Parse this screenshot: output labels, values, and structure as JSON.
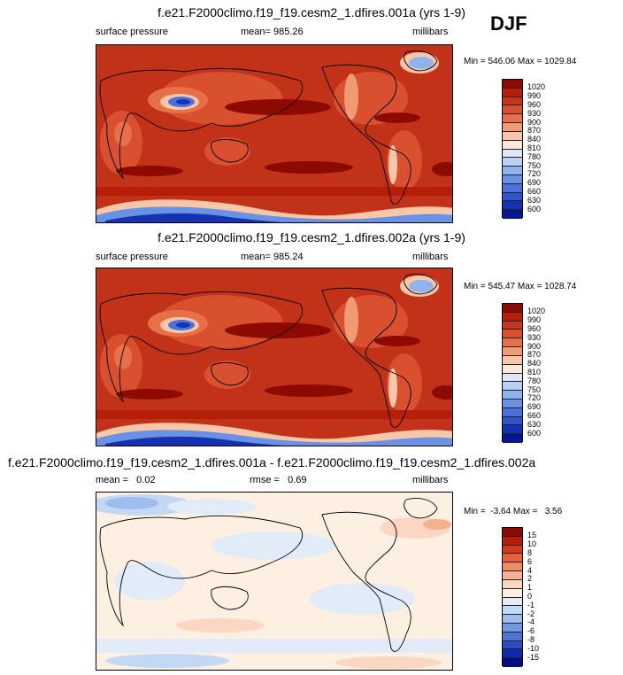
{
  "season_label": "DJF",
  "chart_data": [
    {
      "type": "heatmap",
      "title": "f.e21.F2000climo.f19_f19.cesm2_1.dfires.001a (yrs 1-9)",
      "left_label": "surface pressure",
      "center_label": "mean= 985.26",
      "right_label": "millibars",
      "minmax_label": "Min = 546.06 Max = 1029.84",
      "mean": 985.26,
      "min": 546.06,
      "max": 1029.84,
      "colorbar": {
        "labels": [
          "1020",
          "990",
          "960",
          "930",
          "900",
          "870",
          "840",
          "810",
          "780",
          "750",
          "720",
          "690",
          "660",
          "630",
          "600"
        ],
        "colors": [
          "#8c0a00",
          "#b51f0a",
          "#c9341a",
          "#d85030",
          "#e87048",
          "#f29a74",
          "#f8c6a8",
          "#fbe8da",
          "#dce8f8",
          "#b9d2f4",
          "#91b4ee",
          "#6a92e4",
          "#4a72da",
          "#2e54cc",
          "#1632b2",
          "#06168c"
        ]
      }
    },
    {
      "type": "heatmap",
      "title": "f.e21.F2000climo.f19_f19.cesm2_1.dfires.002a (yrs 1-9)",
      "left_label": "surface pressure",
      "center_label": "mean= 985.24",
      "right_label": "millibars",
      "minmax_label": "Min = 545.47 Max = 1028.74",
      "mean": 985.24,
      "min": 545.47,
      "max": 1028.74,
      "colorbar": {
        "labels": [
          "1020",
          "990",
          "960",
          "930",
          "900",
          "870",
          "840",
          "810",
          "780",
          "750",
          "720",
          "690",
          "660",
          "630",
          "600"
        ],
        "colors": [
          "#8c0a00",
          "#b51f0a",
          "#c9341a",
          "#d85030",
          "#e87048",
          "#f29a74",
          "#f8c6a8",
          "#fbe8da",
          "#dce8f8",
          "#b9d2f4",
          "#91b4ee",
          "#6a92e4",
          "#4a72da",
          "#2e54cc",
          "#1632b2",
          "#06168c"
        ]
      }
    },
    {
      "type": "heatmap",
      "title": "f.e21.F2000climo.f19_f19.cesm2_1.dfires.001a - f.e21.F2000climo.f19_f19.cesm2_1.dfires.002a",
      "left_label": "mean =   0.02",
      "center_label": "rmse =   0.69",
      "right_label": "millibars",
      "minmax_label": "Min =  -3.64 Max =   3.56",
      "mean": 0.02,
      "rmse": 0.69,
      "min": -3.64,
      "max": 3.56,
      "colorbar": {
        "labels": [
          "15",
          "10",
          "8",
          "6",
          "4",
          "2",
          "1",
          "0",
          "-1",
          "-2",
          "-4",
          "-6",
          "-8",
          "-10",
          "-15"
        ],
        "colors": [
          "#8c0a00",
          "#b51f0a",
          "#d23a1c",
          "#e6603c",
          "#f08a62",
          "#f6b08e",
          "#fbd6c0",
          "#fdf0e2",
          "#e2ecf8",
          "#c3d8f2",
          "#9ebcec",
          "#7498e2",
          "#4e74d6",
          "#2c4cc6",
          "#1028aa",
          "#040e80"
        ]
      }
    }
  ]
}
